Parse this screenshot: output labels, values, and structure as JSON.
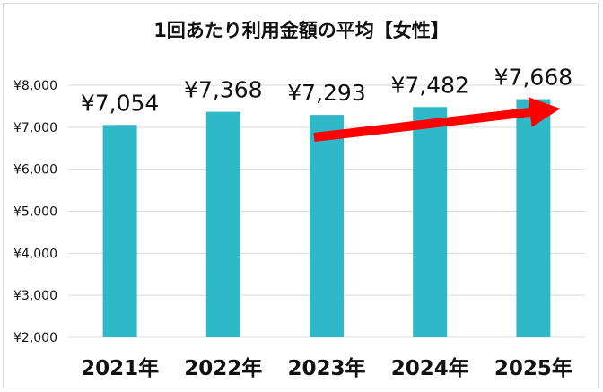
{
  "chart_data": {
    "type": "bar",
    "title": "1回あたり利用金額の平均【女性】",
    "categories": [
      "2021年",
      "2022年",
      "2023年",
      "2024年",
      "2025年"
    ],
    "values": [
      7054,
      7368,
      7293,
      7482,
      7668
    ],
    "data_labels": [
      "¥7,054",
      "¥7,368",
      "¥7,293",
      "¥7,482",
      "¥7,668"
    ],
    "yticks": [
      2000,
      3000,
      4000,
      5000,
      6000,
      7000,
      8000
    ],
    "ytick_labels": [
      "¥2,000",
      "¥3,000",
      "¥4,000",
      "¥5,000",
      "¥6,000",
      "¥7,000",
      "¥8,000"
    ],
    "ylim": [
      2000,
      8000
    ],
    "grid": true,
    "legend": "none",
    "bar_color": "#2eb8c8",
    "annotation": {
      "type": "arrow",
      "from_category": "2023年",
      "to_category": "2025年",
      "color": "#ff0000"
    }
  }
}
